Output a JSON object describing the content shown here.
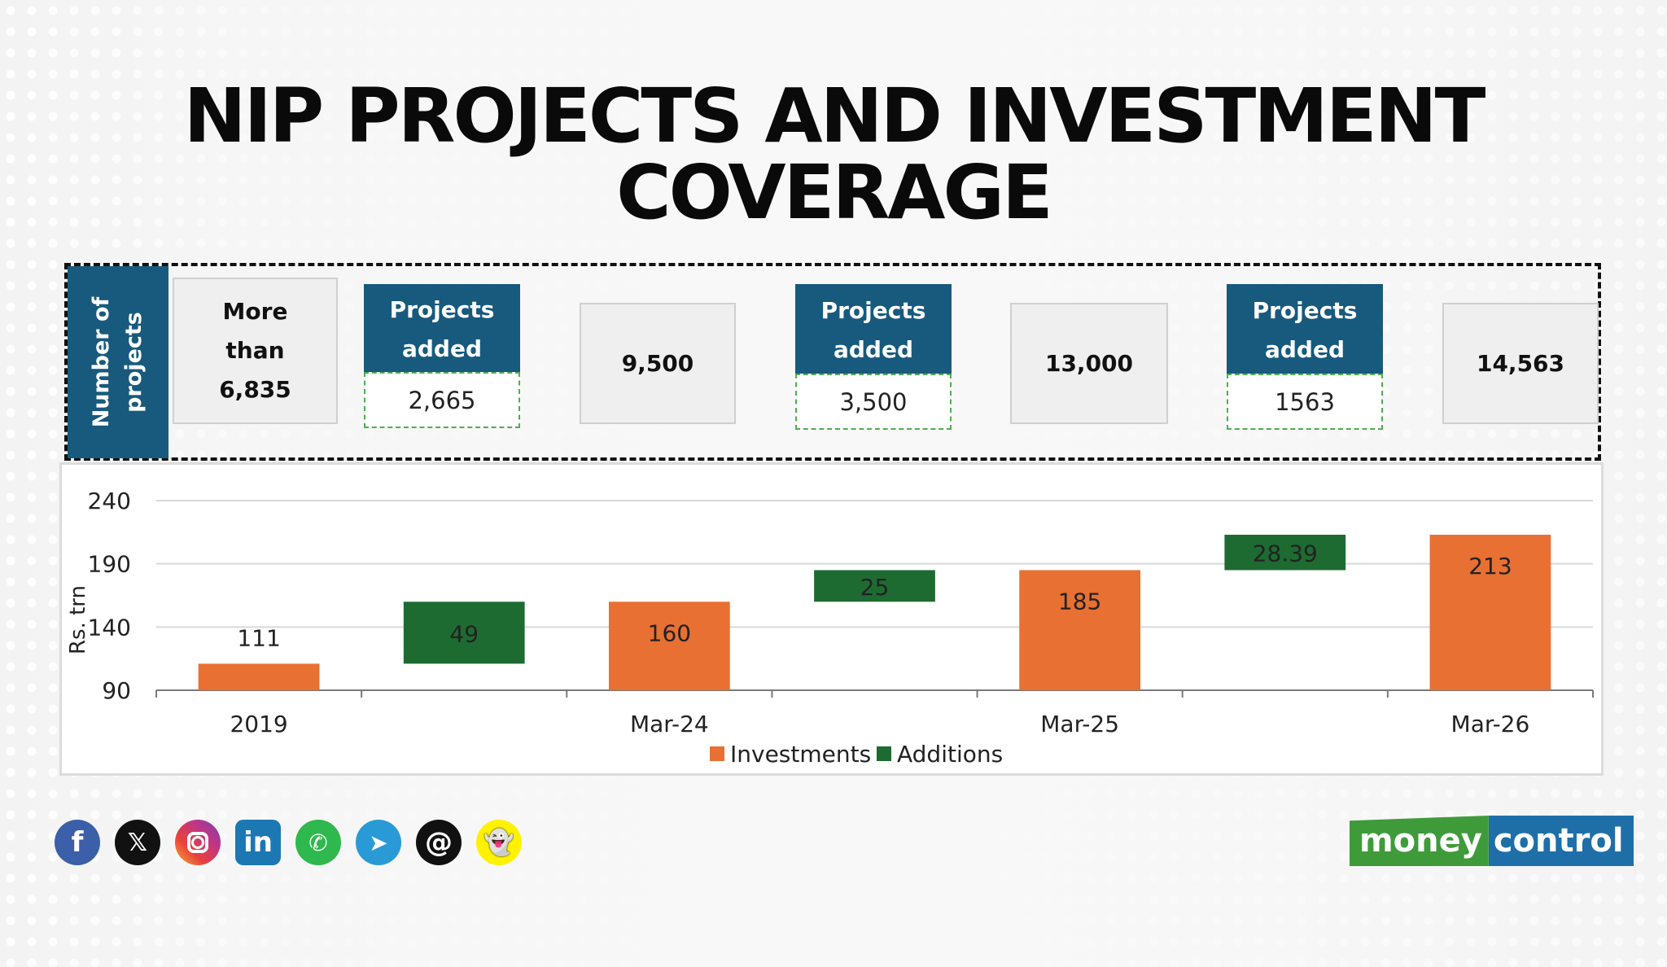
{
  "title_line1": "NIP PROJECTS AND INVESTMENT",
  "title_line2": "COVERAGE",
  "projects_panel": {
    "row_label_line1": "Number of",
    "row_label_line2": "projects",
    "totals": [
      {
        "line1": "More",
        "line2": "than",
        "line3": "6,835"
      },
      {
        "value": "9,500"
      },
      {
        "value": "13,000"
      },
      {
        "value": "14,563"
      }
    ],
    "additions": [
      {
        "line1": "Projects",
        "line2": "added",
        "value": "2,665"
      },
      {
        "line1": "Projects",
        "line2": "added",
        "value": "3,500"
      },
      {
        "line1": "Projects",
        "line2": "added",
        "value": "1563"
      }
    ]
  },
  "chart_data": {
    "type": "bar",
    "subtype": "waterfall",
    "ylabel": "Rs. trn",
    "ylim": [
      90,
      240
    ],
    "yticks": [
      90,
      140,
      190,
      240
    ],
    "categories": [
      "2019",
      "",
      "Mar-24",
      "",
      "Mar-25",
      "",
      "Mar-26"
    ],
    "tick_labels": [
      "2019",
      "Mar-24",
      "Mar-25",
      "Mar-26"
    ],
    "bars": [
      {
        "series": "Investments",
        "label": "111",
        "start": 90,
        "end": 111
      },
      {
        "series": "Additions",
        "label": "49",
        "start": 111,
        "end": 160
      },
      {
        "series": "Investments",
        "label": "160",
        "start": 90,
        "end": 160
      },
      {
        "series": "Additions",
        "label": "25",
        "start": 160,
        "end": 185
      },
      {
        "series": "Investments",
        "label": "185",
        "start": 90,
        "end": 185
      },
      {
        "series": "Additions",
        "label": "28.39",
        "start": 185,
        "end": 213
      },
      {
        "series": "Investments",
        "label": "213",
        "start": 90,
        "end": 213
      }
    ],
    "series": [
      {
        "name": "Investments",
        "color": "#e87032"
      },
      {
        "name": "Additions",
        "color": "#1e6b32"
      }
    ],
    "grid": true,
    "legend": "bottom"
  },
  "social_icons": [
    "facebook-icon",
    "x-icon",
    "instagram-icon",
    "linkedin-icon",
    "whatsapp-icon",
    "telegram-icon",
    "threads-icon",
    "snapchat-icon"
  ],
  "logo": {
    "part1": "money",
    "part2": "control"
  }
}
